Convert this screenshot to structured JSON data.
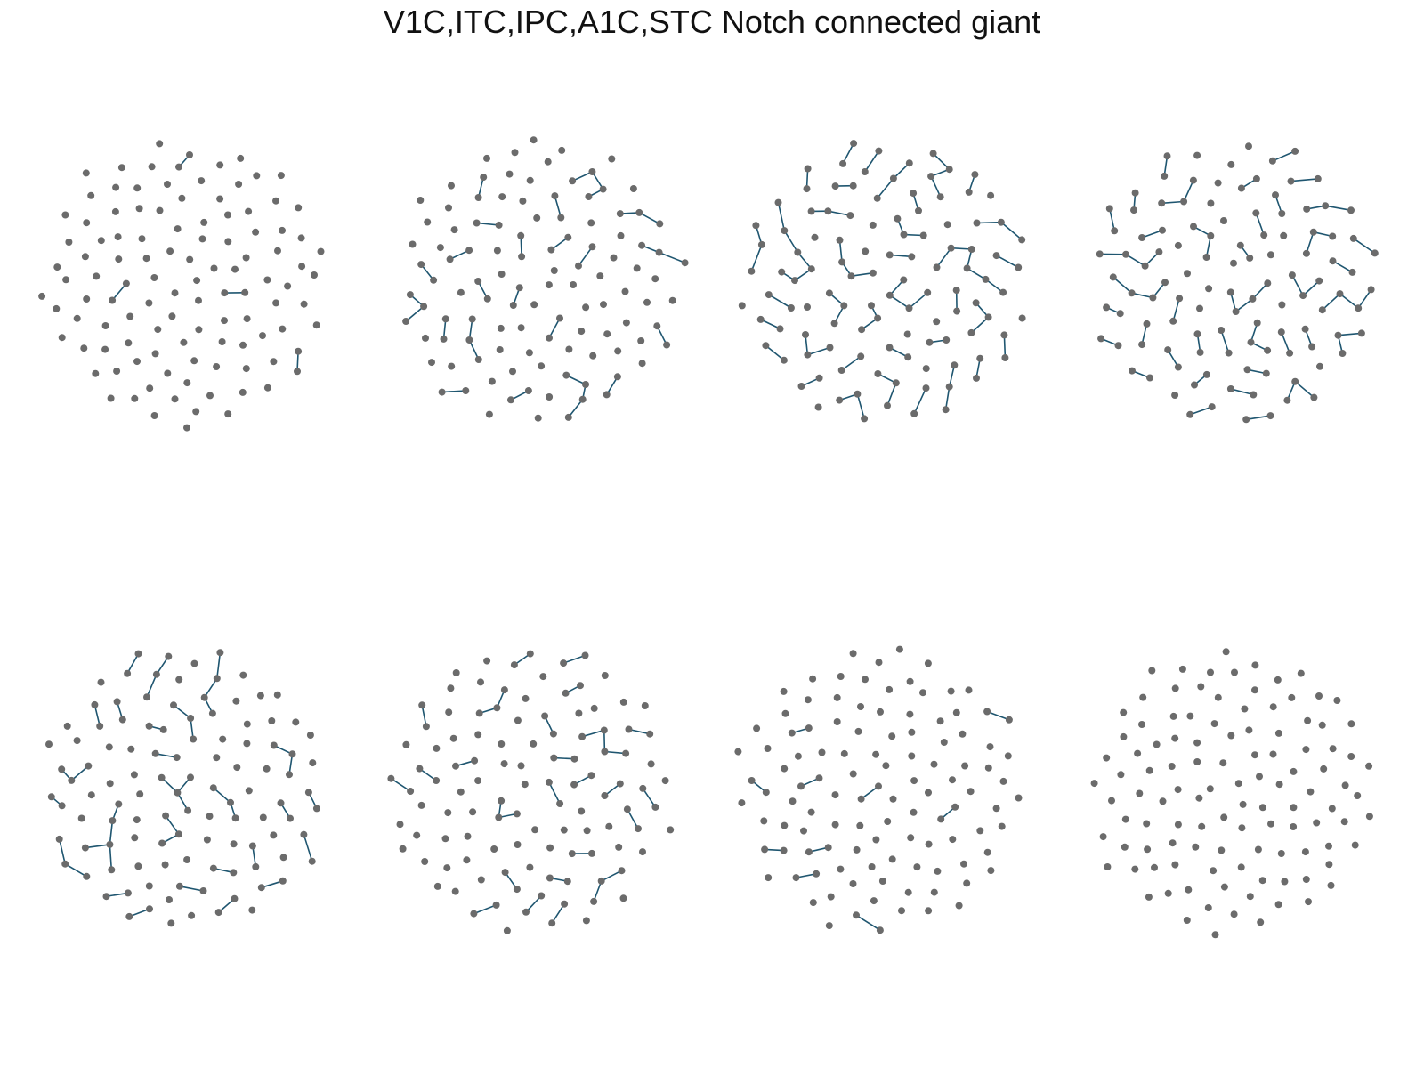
{
  "title": "V1C,ITC,IPC,A1C,STC Notch connected giant",
  "colors": {
    "node": "#6b6b6b",
    "edge": "#1f5670",
    "background": "#ffffff"
  },
  "panel_count": 8,
  "edges_per_panel": [
    4,
    30,
    62,
    55,
    40,
    30,
    10,
    0
  ]
}
